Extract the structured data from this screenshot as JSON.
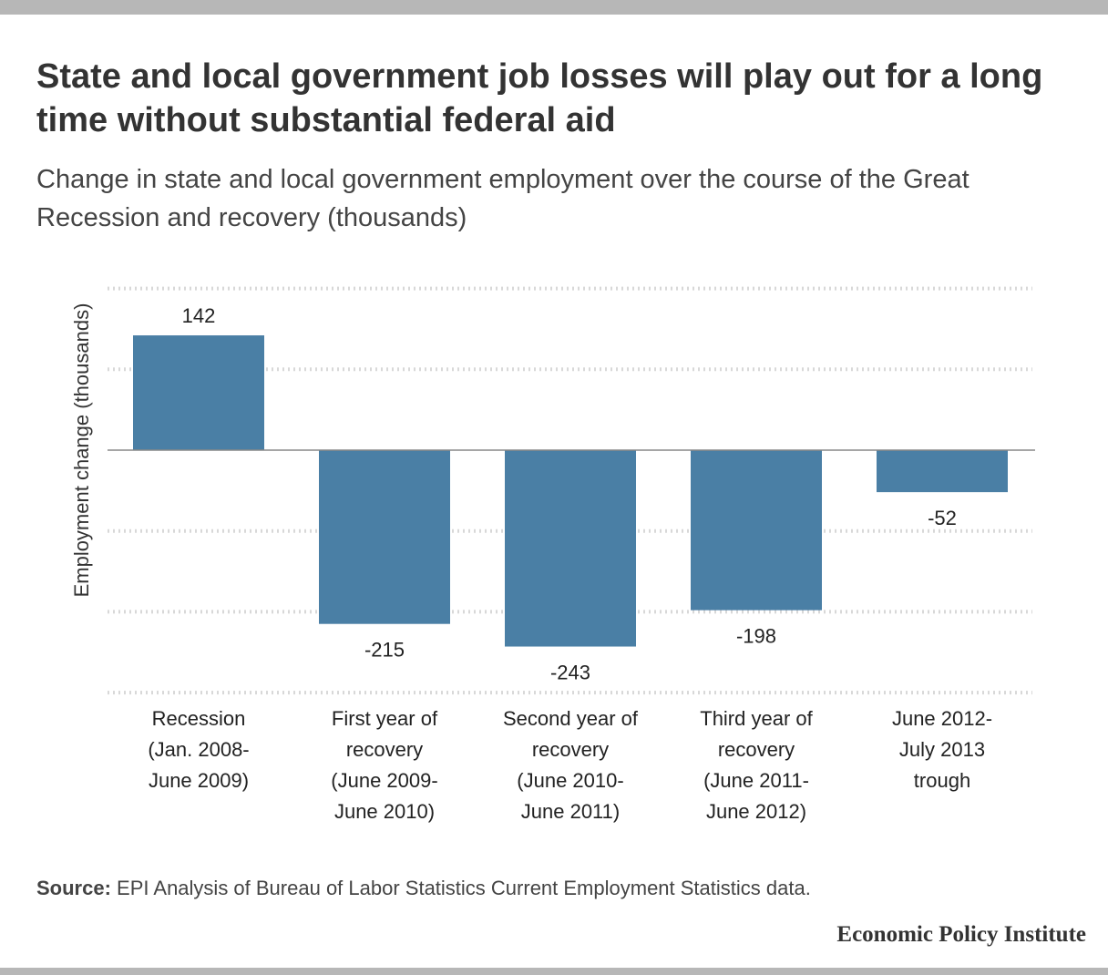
{
  "header": {
    "title": "State and local government job losses will play out for a long time without substantial federal aid",
    "subtitle": "Change in state and local government employment over the course of the Great Recession and recovery (thousands)"
  },
  "chart_data": {
    "type": "bar",
    "categories": [
      [
        "Recession",
        "(Jan. 2008-",
        "June 2009)"
      ],
      [
        "First year of",
        "recovery",
        "(June 2009-",
        "June 2010)"
      ],
      [
        "Second year of",
        "recovery",
        "(June 2010-",
        "June 2011)"
      ],
      [
        "Third year of",
        "recovery",
        "(June 2011-",
        "June 2012)"
      ],
      [
        "June 2012-",
        "July 2013",
        "trough"
      ]
    ],
    "values": [
      142,
      -215,
      -243,
      -198,
      -52
    ],
    "data_labels": [
      "142",
      "-215",
      "-243",
      "-198",
      "-52"
    ],
    "ylabel": "Employment change (thousands)",
    "xlabel": "",
    "ylim": [
      -300,
      200
    ],
    "grid": true,
    "bar_color": "#4a7fa5"
  },
  "footer": {
    "source_label": "Source:",
    "source_text": " EPI Analysis of Bureau of Labor Statistics Current Employment Statistics data.",
    "brand": "Economic Policy Institute"
  }
}
